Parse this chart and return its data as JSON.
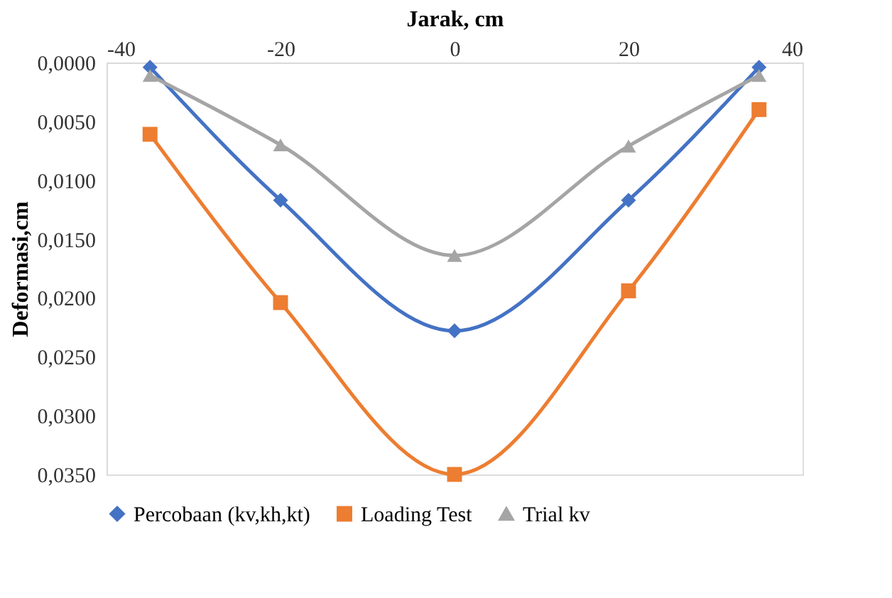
{
  "chart_data": {
    "type": "line",
    "xlabel": "Jarak, cm",
    "ylabel": "Deformasi,cm",
    "x": [
      -35,
      -20,
      0,
      20,
      35
    ],
    "series": [
      {
        "name": "Percobaan (kv,kh,kt)",
        "color": "#4472c4",
        "marker": "diamond",
        "values": [
          0.0004,
          0.0117,
          0.0228,
          0.0117,
          0.0004
        ]
      },
      {
        "name": "Loading Test",
        "color": "#ed7d31",
        "marker": "square",
        "values": [
          0.0061,
          0.0204,
          0.035,
          0.0194,
          0.004
        ]
      },
      {
        "name": "Trial kv",
        "color": "#a5a5a5",
        "marker": "triangle",
        "values": [
          0.0011,
          0.007,
          0.0164,
          0.0071,
          0.0011
        ]
      }
    ],
    "xlim": [
      -40,
      40
    ],
    "xticks": [
      -40,
      -20,
      0,
      20,
      40
    ],
    "ylim": [
      0.035,
      0
    ],
    "yticks": [
      {
        "value": 0,
        "label": "0,0000"
      },
      {
        "value": 0.005,
        "label": "0,0050"
      },
      {
        "value": 0.01,
        "label": "0,0100"
      },
      {
        "value": 0.015,
        "label": "0,0150"
      },
      {
        "value": 0.02,
        "label": "0,0200"
      },
      {
        "value": 0.025,
        "label": "0,0250"
      },
      {
        "value": 0.03,
        "label": "0,0300"
      },
      {
        "value": 0.035,
        "label": "0,0350"
      }
    ],
    "grid": false,
    "legend": "bottom",
    "line_style": "solid"
  }
}
